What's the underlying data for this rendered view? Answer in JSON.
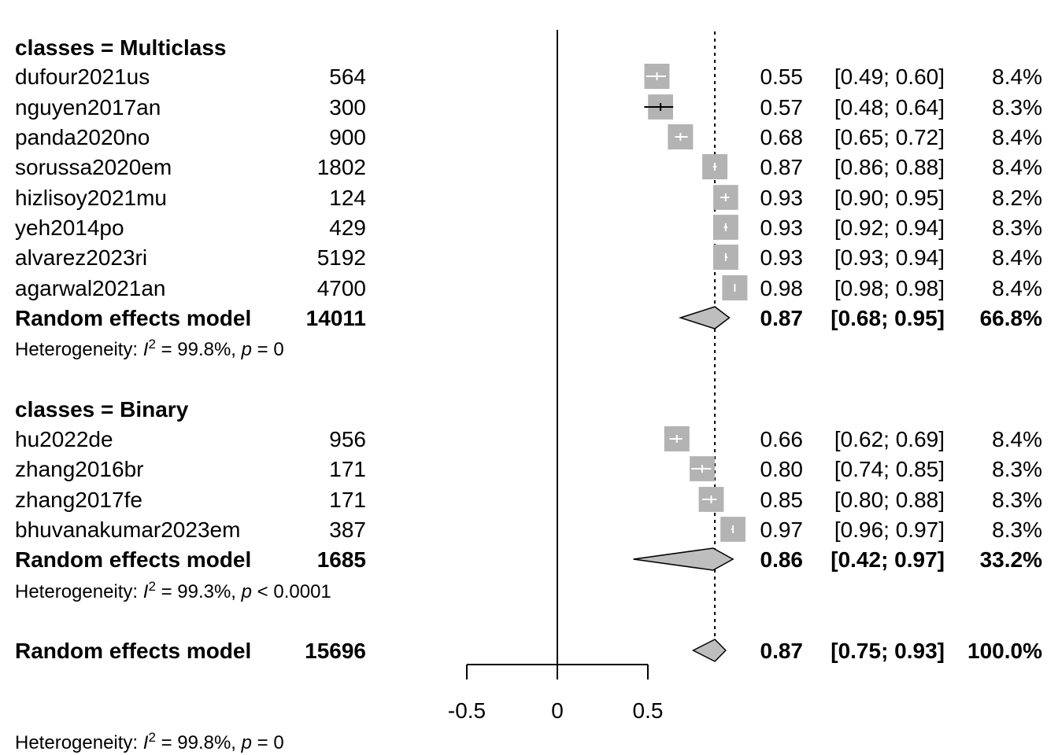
{
  "chart_data": {
    "type": "forest",
    "xaxis": {
      "ticks": [
        -0.5,
        0,
        0.5
      ],
      "tick_labels": [
        "-0.5",
        "0",
        "0.5"
      ],
      "range": [
        -0.5,
        0.5
      ]
    },
    "null_line": 0,
    "reference_line": 0.87,
    "colors": {
      "box": "#b3b3b3",
      "diamond": "#bebebe",
      "line": "#000000",
      "ci_inside": "#ffffff"
    },
    "groups": [
      {
        "title": "classes = Multiclass",
        "studies": [
          {
            "name": "dufour2021us",
            "n": "564",
            "est": 0.55,
            "lo": 0.49,
            "hi": 0.6,
            "est_text": "0.55",
            "ci_text": "[0.49; 0.60]",
            "weight": "8.4%"
          },
          {
            "name": "nguyen2017an",
            "n": "300",
            "est": 0.57,
            "lo": 0.48,
            "hi": 0.64,
            "est_text": "0.57",
            "ci_text": "[0.48; 0.64]",
            "weight": "8.3%"
          },
          {
            "name": "panda2020no",
            "n": "900",
            "est": 0.68,
            "lo": 0.65,
            "hi": 0.72,
            "est_text": "0.68",
            "ci_text": "[0.65; 0.72]",
            "weight": "8.4%"
          },
          {
            "name": "sorussa2020em",
            "n": "1802",
            "est": 0.87,
            "lo": 0.86,
            "hi": 0.88,
            "est_text": "0.87",
            "ci_text": "[0.86; 0.88]",
            "weight": "8.4%"
          },
          {
            "name": "hizlisoy2021mu",
            "n": "124",
            "est": 0.93,
            "lo": 0.9,
            "hi": 0.95,
            "est_text": "0.93",
            "ci_text": "[0.90; 0.95]",
            "weight": "8.2%"
          },
          {
            "name": "yeh2014po",
            "n": "429",
            "est": 0.93,
            "lo": 0.92,
            "hi": 0.94,
            "est_text": "0.93",
            "ci_text": "[0.92; 0.94]",
            "weight": "8.3%"
          },
          {
            "name": "alvarez2023ri",
            "n": "5192",
            "est": 0.93,
            "lo": 0.93,
            "hi": 0.94,
            "est_text": "0.93",
            "ci_text": "[0.93; 0.94]",
            "weight": "8.4%"
          },
          {
            "name": "agarwal2021an",
            "n": "4700",
            "est": 0.98,
            "lo": 0.98,
            "hi": 0.98,
            "est_text": "0.98",
            "ci_text": "[0.98; 0.98]",
            "weight": "8.4%"
          }
        ],
        "re": {
          "name": "Random effects model",
          "n": "14011",
          "est": 0.87,
          "lo": 0.68,
          "hi": 0.95,
          "est_text": "0.87",
          "ci_text": "[0.68; 0.95]",
          "weight": "66.8%"
        },
        "het": {
          "prefix": "Heterogeneity: ",
          "i": "I",
          "sup": "2",
          "i2": " = 99.8%, ",
          "p": "p",
          "p_val": " = 0"
        }
      },
      {
        "title": "classes = Binary",
        "studies": [
          {
            "name": "hu2022de",
            "n": "956",
            "est": 0.66,
            "lo": 0.62,
            "hi": 0.69,
            "est_text": "0.66",
            "ci_text": "[0.62; 0.69]",
            "weight": "8.4%"
          },
          {
            "name": "zhang2016br",
            "n": "171",
            "est": 0.8,
            "lo": 0.74,
            "hi": 0.85,
            "est_text": "0.80",
            "ci_text": "[0.74; 0.85]",
            "weight": "8.3%"
          },
          {
            "name": "zhang2017fe",
            "n": "171",
            "est": 0.85,
            "lo": 0.8,
            "hi": 0.88,
            "est_text": "0.85",
            "ci_text": "[0.80; 0.88]",
            "weight": "8.3%"
          },
          {
            "name": "bhuvanakumar2023em",
            "n": "387",
            "est": 0.97,
            "lo": 0.96,
            "hi": 0.97,
            "est_text": "0.97",
            "ci_text": "[0.96; 0.97]",
            "weight": "8.3%"
          }
        ],
        "re": {
          "name": "Random effects model",
          "n": "1685",
          "est": 0.86,
          "lo": 0.42,
          "hi": 0.97,
          "est_text": "0.86",
          "ci_text": "[0.42; 0.97]",
          "weight": "33.2%"
        },
        "het": {
          "prefix": "Heterogeneity: ",
          "i": "I",
          "sup": "2",
          "i2": " = 99.3%, ",
          "p": "p",
          "p_val": " < 0.0001"
        }
      }
    ],
    "overall": {
      "name": "Random effects model",
      "n": "15696",
      "est": 0.87,
      "lo": 0.75,
      "hi": 0.93,
      "est_text": "0.87",
      "ci_text": "[0.75; 0.93]",
      "weight": "100.0%"
    },
    "overall_het": {
      "prefix": "Heterogeneity: ",
      "i": "I",
      "sup": "2",
      "i2": " = 99.8%, ",
      "p": "p",
      "p_val": " = 0"
    }
  }
}
